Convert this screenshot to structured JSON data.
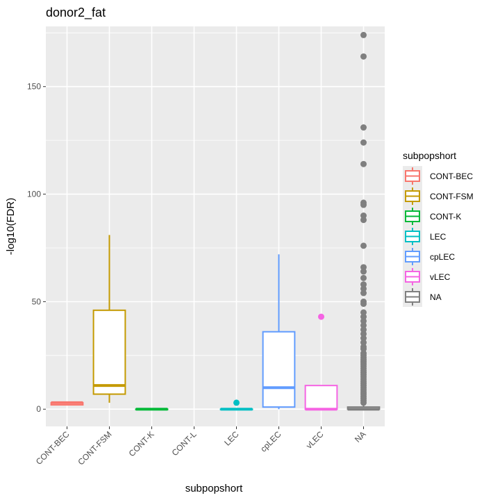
{
  "chart_data": {
    "type": "box",
    "title": "donor2_fat",
    "xlabel": "subpopshort",
    "ylabel": "-log10(FDR)",
    "ylim": [
      -8,
      178
    ],
    "yticks": [
      0,
      50,
      100,
      150
    ],
    "grid": true,
    "legend_position": "right",
    "legend_title": "subpopshort",
    "categories": [
      "CONT-BEC",
      "CONT-FSM",
      "CONT-K",
      "CONT-L",
      "LEC",
      "cpLEC",
      "vLEC",
      "NA"
    ],
    "boxes": [
      {
        "category": "CONT-BEC",
        "color": "#F8766D",
        "min": 2,
        "q1": 2,
        "median": 3,
        "q3": 3,
        "max": 3,
        "outliers": []
      },
      {
        "category": "CONT-FSM",
        "color": "#C49A00",
        "min": 3,
        "q1": 7,
        "median": 11,
        "q3": 46,
        "max": 81,
        "outliers": []
      },
      {
        "category": "CONT-K",
        "color": "#00B938",
        "min": 0,
        "q1": 0,
        "median": 0,
        "q3": 0,
        "max": 0,
        "outliers": []
      },
      {
        "category": "CONT-L",
        "color": null,
        "min": null,
        "q1": null,
        "median": null,
        "q3": null,
        "max": null,
        "outliers": []
      },
      {
        "category": "LEC",
        "color": "#00BFC4",
        "min": 0,
        "q1": 0,
        "median": 0,
        "q3": 0,
        "max": 0,
        "outliers": [
          3
        ]
      },
      {
        "category": "cpLEC",
        "color": "#619CFF",
        "min": 0,
        "q1": 1,
        "median": 10,
        "q3": 36,
        "max": 72,
        "outliers": []
      },
      {
        "category": "vLEC",
        "color": "#F564E3",
        "min": 0,
        "q1": 0,
        "median": 0,
        "q3": 11,
        "max": 11,
        "outliers": [
          43
        ]
      },
      {
        "category": "NA",
        "color": "#7F7F7F",
        "min": 0,
        "q1": 0,
        "median": 0,
        "q3": 1,
        "max": 2,
        "outliers": [
          174,
          164,
          131,
          124,
          114,
          96,
          95,
          90,
          88,
          76,
          66,
          64,
          61,
          58,
          56,
          54,
          50,
          49,
          45,
          43,
          41,
          39,
          37,
          35,
          33,
          31,
          29,
          28,
          26,
          25,
          24,
          23,
          22,
          21,
          20,
          19,
          18,
          17,
          16,
          15,
          14,
          13,
          12,
          11,
          10,
          9,
          8,
          7,
          6,
          5,
          4,
          3
        ]
      }
    ],
    "legend_entries": [
      {
        "label": "CONT-BEC",
        "color": "#F8766D"
      },
      {
        "label": "CONT-FSM",
        "color": "#C49A00"
      },
      {
        "label": "CONT-K",
        "color": "#00B938"
      },
      {
        "label": "LEC",
        "color": "#00BFC4"
      },
      {
        "label": "cpLEC",
        "color": "#619CFF"
      },
      {
        "label": "vLEC",
        "color": "#F564E3"
      },
      {
        "label": "NA",
        "color": "#7F7F7F"
      }
    ],
    "panel_background": "#EBEBEB",
    "grid_color": "#FFFFFF"
  }
}
